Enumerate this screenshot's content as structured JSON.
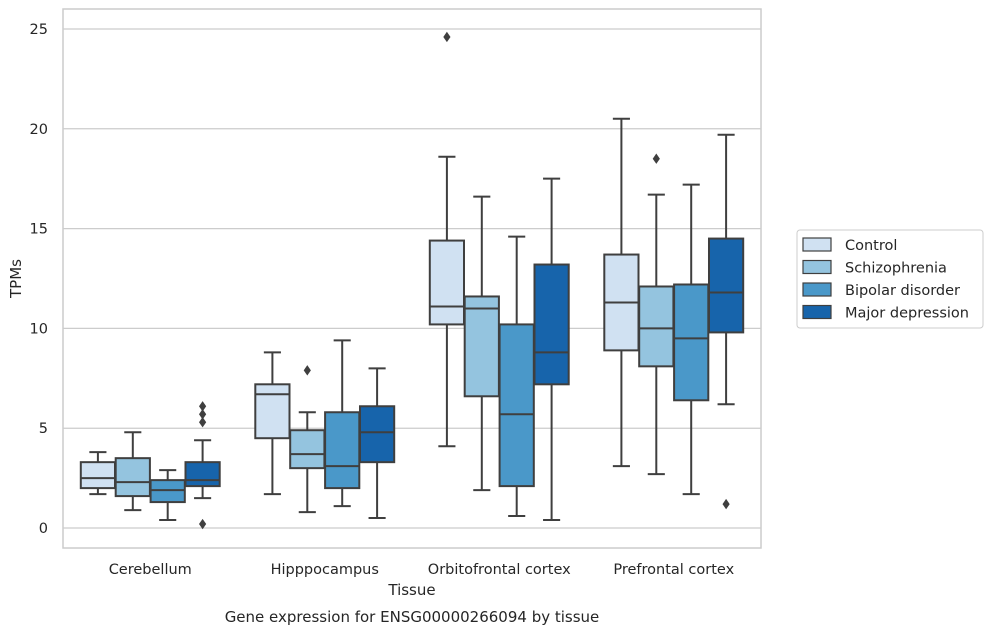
{
  "chart_data": {
    "type": "box",
    "xlabel": "Tissue",
    "ylabel": "TPMs",
    "caption": "Gene expression for ENSG00000266094 by tissue",
    "ylim": [
      -1,
      26
    ],
    "yticks": [
      0,
      5,
      10,
      15,
      20,
      25
    ],
    "grid": true,
    "legend_position": "right",
    "categories": [
      "Cerebellum",
      "Hipppocampus",
      "Orbitofrontal cortex",
      "Prefrontal cortex"
    ],
    "series": [
      {
        "name": "Control",
        "color": "#d0e1f2",
        "boxes": [
          {
            "whisker_low": 1.7,
            "q1": 2.0,
            "median": 2.5,
            "q3": 3.3,
            "whisker_high": 3.8,
            "outliers": []
          },
          {
            "whisker_low": 1.7,
            "q1": 4.5,
            "median": 6.7,
            "q3": 7.2,
            "whisker_high": 8.8,
            "outliers": []
          },
          {
            "whisker_low": 4.1,
            "q1": 10.2,
            "median": 11.1,
            "q3": 14.4,
            "whisker_high": 18.6,
            "outliers": [
              24.6
            ]
          },
          {
            "whisker_low": 3.1,
            "q1": 8.9,
            "median": 11.3,
            "q3": 13.7,
            "whisker_high": 20.5,
            "outliers": []
          }
        ]
      },
      {
        "name": "Schizophrenia",
        "color": "#94c4df",
        "boxes": [
          {
            "whisker_low": 0.9,
            "q1": 1.6,
            "median": 2.3,
            "q3": 3.5,
            "whisker_high": 4.8,
            "outliers": []
          },
          {
            "whisker_low": 0.8,
            "q1": 3.0,
            "median": 3.7,
            "q3": 4.9,
            "whisker_high": 5.8,
            "outliers": [
              7.9
            ]
          },
          {
            "whisker_low": 1.9,
            "q1": 6.6,
            "median": 11.0,
            "q3": 11.6,
            "whisker_high": 16.6,
            "outliers": []
          },
          {
            "whisker_low": 2.7,
            "q1": 8.1,
            "median": 10.0,
            "q3": 12.1,
            "whisker_high": 16.7,
            "outliers": [
              18.5
            ]
          }
        ]
      },
      {
        "name": "Bipolar disorder",
        "color": "#4a98c9",
        "boxes": [
          {
            "whisker_low": 0.4,
            "q1": 1.3,
            "median": 1.9,
            "q3": 2.4,
            "whisker_high": 2.9,
            "outliers": []
          },
          {
            "whisker_low": 1.1,
            "q1": 2.0,
            "median": 3.1,
            "q3": 5.8,
            "whisker_high": 9.4,
            "outliers": []
          },
          {
            "whisker_low": 0.6,
            "q1": 2.1,
            "median": 5.7,
            "q3": 10.2,
            "whisker_high": 14.6,
            "outliers": []
          },
          {
            "whisker_low": 1.7,
            "q1": 6.4,
            "median": 9.5,
            "q3": 12.2,
            "whisker_high": 17.2,
            "outliers": []
          }
        ]
      },
      {
        "name": "Major depression",
        "color": "#1764ab",
        "boxes": [
          {
            "whisker_low": 1.5,
            "q1": 2.1,
            "median": 2.4,
            "q3": 3.3,
            "whisker_high": 4.4,
            "outliers": [
              6.1,
              5.7,
              5.3,
              0.2
            ]
          },
          {
            "whisker_low": 0.5,
            "q1": 3.3,
            "median": 4.8,
            "q3": 6.1,
            "whisker_high": 8.0,
            "outliers": []
          },
          {
            "whisker_low": 0.4,
            "q1": 7.2,
            "median": 8.8,
            "q3": 13.2,
            "whisker_high": 17.5,
            "outliers": []
          },
          {
            "whisker_low": 6.2,
            "q1": 9.8,
            "median": 11.8,
            "q3": 14.5,
            "whisker_high": 19.7,
            "outliers": [
              1.2
            ]
          }
        ]
      }
    ]
  }
}
